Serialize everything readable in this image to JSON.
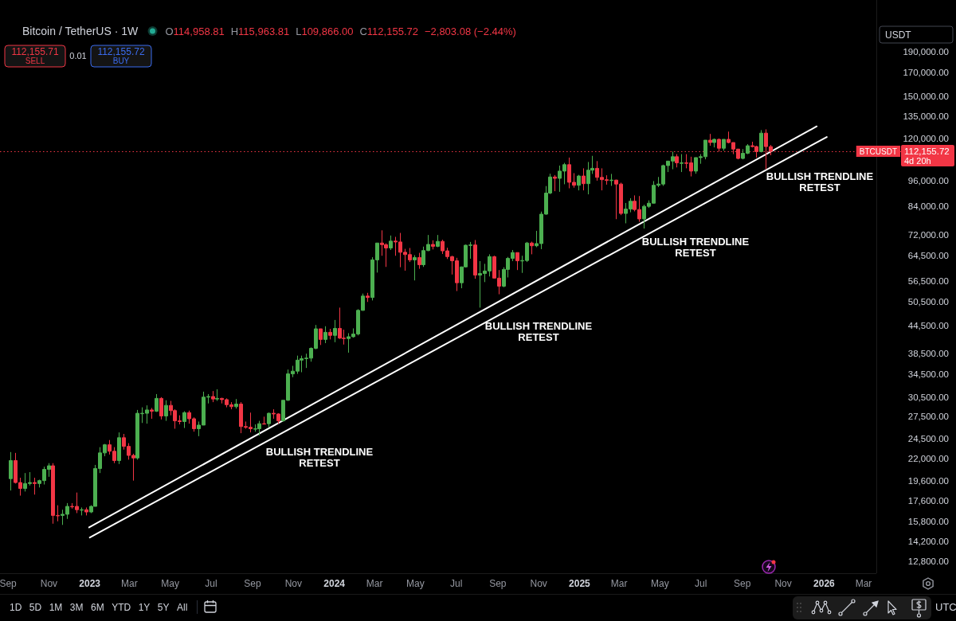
{
  "chart_data": {
    "type": "candlestick",
    "title": "Bitcoin / TetherUS · 1W",
    "log": true,
    "xlim": [
      "2022-08-20",
      "2026-03-20"
    ],
    "ylim": [
      12000,
      250000
    ],
    "xticks": [
      {
        "value": "2022-09-01",
        "label": "Sep"
      },
      {
        "value": "2022-11-01",
        "label": "Nov"
      },
      {
        "value": "2023-01-01",
        "label": "2023"
      },
      {
        "value": "2023-03-01",
        "label": "Mar"
      },
      {
        "value": "2023-05-01",
        "label": "May"
      },
      {
        "value": "2023-07-01",
        "label": "Jul"
      },
      {
        "value": "2023-09-01",
        "label": "Sep"
      },
      {
        "value": "2023-11-01",
        "label": "Nov"
      },
      {
        "value": "2024-01-01",
        "label": "2024"
      },
      {
        "value": "2024-03-01",
        "label": "Mar"
      },
      {
        "value": "2024-05-01",
        "label": "May"
      },
      {
        "value": "2024-07-01",
        "label": "Jul"
      },
      {
        "value": "2024-09-01",
        "label": "Sep"
      },
      {
        "value": "2024-11-01",
        "label": "Nov"
      },
      {
        "value": "2025-01-01",
        "label": "2025"
      },
      {
        "value": "2025-03-01",
        "label": "Mar"
      },
      {
        "value": "2025-05-01",
        "label": "May"
      },
      {
        "value": "2025-07-01",
        "label": "Jul"
      },
      {
        "value": "2025-09-01",
        "label": "Sep"
      },
      {
        "value": "2025-11-01",
        "label": "Nov"
      },
      {
        "value": "2026-01-01",
        "label": "2026"
      },
      {
        "value": "2026-03-01",
        "label": "Mar"
      }
    ],
    "yticks": [
      {
        "value": 12800,
        "label": "12,800.00"
      },
      {
        "value": 14200,
        "label": "14,200.00"
      },
      {
        "value": 15800,
        "label": "15,800.00"
      },
      {
        "value": 17600,
        "label": "17,600.00"
      },
      {
        "value": 19600,
        "label": "19,600.00"
      },
      {
        "value": 22000,
        "label": "22,000.00"
      },
      {
        "value": 24500,
        "label": "24,500.00"
      },
      {
        "value": 27500,
        "label": "27,500.00"
      },
      {
        "value": 30500,
        "label": "30,500.00"
      },
      {
        "value": 34500,
        "label": "34,500.00"
      },
      {
        "value": 38500,
        "label": "38,500.00"
      },
      {
        "value": 44500,
        "label": "44,500.00"
      },
      {
        "value": 50500,
        "label": "50,500.00"
      },
      {
        "value": 56500,
        "label": "56,500.00"
      },
      {
        "value": 64500,
        "label": "64,500.00"
      },
      {
        "value": 72000,
        "label": "72,000.00"
      },
      {
        "value": 84000,
        "label": "84,000.00"
      },
      {
        "value": 96000,
        "label": "96,000.00"
      },
      {
        "value": 120000,
        "label": "120,000.00"
      },
      {
        "value": 135000,
        "label": "135,000.00"
      },
      {
        "value": 150000,
        "label": "150,000.00"
      },
      {
        "value": 170000,
        "label": "170,000.00"
      },
      {
        "value": 190000,
        "label": "190,000.00"
      }
    ],
    "x": [
      "2022-09-05",
      "2022-09-12",
      "2022-09-19",
      "2022-09-26",
      "2022-10-03",
      "2022-10-10",
      "2022-10-17",
      "2022-10-24",
      "2022-10-31",
      "2022-11-07",
      "2022-11-14",
      "2022-11-21",
      "2022-11-28",
      "2022-12-05",
      "2022-12-12",
      "2022-12-19",
      "2022-12-26",
      "2023-01-02",
      "2023-01-09",
      "2023-01-16",
      "2023-01-23",
      "2023-01-30",
      "2023-02-06",
      "2023-02-13",
      "2023-02-20",
      "2023-02-27",
      "2023-03-06",
      "2023-03-13",
      "2023-03-20",
      "2023-03-27",
      "2023-04-03",
      "2023-04-10",
      "2023-04-17",
      "2023-04-24",
      "2023-05-01",
      "2023-05-08",
      "2023-05-15",
      "2023-05-22",
      "2023-05-29",
      "2023-06-05",
      "2023-06-12",
      "2023-06-19",
      "2023-06-26",
      "2023-07-03",
      "2023-07-10",
      "2023-07-17",
      "2023-07-24",
      "2023-07-31",
      "2023-08-07",
      "2023-08-14",
      "2023-08-21",
      "2023-08-28",
      "2023-09-04",
      "2023-09-11",
      "2023-09-18",
      "2023-09-25",
      "2023-10-02",
      "2023-10-09",
      "2023-10-16",
      "2023-10-23",
      "2023-10-30",
      "2023-11-06",
      "2023-11-13",
      "2023-11-20",
      "2023-11-27",
      "2023-12-04",
      "2023-12-11",
      "2023-12-18",
      "2023-12-25",
      "2024-01-01",
      "2024-01-08",
      "2024-01-15",
      "2024-01-22",
      "2024-01-29",
      "2024-02-05",
      "2024-02-12",
      "2024-02-19",
      "2024-02-26",
      "2024-03-04",
      "2024-03-11",
      "2024-03-18",
      "2024-03-25",
      "2024-04-01",
      "2024-04-08",
      "2024-04-15",
      "2024-04-22",
      "2024-04-29",
      "2024-05-06",
      "2024-05-13",
      "2024-05-20",
      "2024-05-27",
      "2024-06-03",
      "2024-06-10",
      "2024-06-17",
      "2024-06-24",
      "2024-07-01",
      "2024-07-08",
      "2024-07-15",
      "2024-07-22",
      "2024-07-29",
      "2024-08-05",
      "2024-08-12",
      "2024-08-19",
      "2024-08-26",
      "2024-09-02",
      "2024-09-09",
      "2024-09-16",
      "2024-09-23",
      "2024-09-30",
      "2024-10-07",
      "2024-10-14",
      "2024-10-21",
      "2024-10-28",
      "2024-11-04",
      "2024-11-11",
      "2024-11-18",
      "2024-11-25",
      "2024-12-02",
      "2024-12-09",
      "2024-12-16",
      "2024-12-23",
      "2024-12-30",
      "2025-01-06",
      "2025-01-13",
      "2025-01-20",
      "2025-01-27",
      "2025-02-03",
      "2025-02-10",
      "2025-02-17",
      "2025-02-24",
      "2025-03-03",
      "2025-03-10",
      "2025-03-17",
      "2025-03-24",
      "2025-03-31",
      "2025-04-07",
      "2025-04-14",
      "2025-04-21",
      "2025-04-28",
      "2025-05-05",
      "2025-05-12",
      "2025-05-19",
      "2025-05-26",
      "2025-06-02",
      "2025-06-09",
      "2025-06-16",
      "2025-06-23",
      "2025-06-30",
      "2025-07-07",
      "2025-07-14",
      "2025-07-21",
      "2025-07-28",
      "2025-08-04",
      "2025-08-11",
      "2025-08-18",
      "2025-08-25",
      "2025-09-01",
      "2025-09-08",
      "2025-09-15",
      "2025-09-22",
      "2025-09-29",
      "2025-10-06",
      "2025-10-13"
    ],
    "ohlc": [
      [
        19800,
        22800,
        18600,
        21800
      ],
      [
        21800,
        22700,
        19300,
        19400
      ],
      [
        19400,
        19900,
        18100,
        18800
      ],
      [
        18800,
        20400,
        18500,
        19300
      ],
      [
        19300,
        20500,
        19100,
        19400
      ],
      [
        19400,
        19900,
        18200,
        19300
      ],
      [
        19300,
        19700,
        18900,
        19600
      ],
      [
        19600,
        21100,
        19200,
        20800
      ],
      [
        20800,
        21500,
        20000,
        21200
      ],
      [
        21200,
        21500,
        15600,
        16300
      ],
      [
        16300,
        17200,
        15800,
        16300
      ],
      [
        16300,
        16800,
        15500,
        16400
      ],
      [
        16400,
        17400,
        16000,
        17100
      ],
      [
        17100,
        17400,
        16900,
        17100
      ],
      [
        17100,
        18400,
        16500,
        16800
      ],
      [
        16800,
        17000,
        16300,
        16800
      ],
      [
        16800,
        17000,
        16300,
        16600
      ],
      [
        16600,
        17200,
        16500,
        17100
      ],
      [
        17100,
        21300,
        17100,
        20900
      ],
      [
        20900,
        23400,
        20400,
        22700
      ],
      [
        22700,
        23800,
        22300,
        23700
      ],
      [
        23700,
        24300,
        22500,
        22900
      ],
      [
        22900,
        23400,
        21500,
        21800
      ],
      [
        21800,
        25300,
        21400,
        24600
      ],
      [
        24600,
        25100,
        23100,
        23500
      ],
      [
        23500,
        23900,
        21900,
        22400
      ],
      [
        22400,
        22600,
        19600,
        22100
      ],
      [
        22100,
        28500,
        21900,
        28000
      ],
      [
        28000,
        28900,
        26600,
        28000
      ],
      [
        28000,
        29200,
        26500,
        28500
      ],
      [
        28500,
        28800,
        27200,
        28300
      ],
      [
        28300,
        31000,
        28200,
        30300
      ],
      [
        30300,
        30500,
        27100,
        27600
      ],
      [
        27600,
        30000,
        26900,
        29200
      ],
      [
        29200,
        29900,
        27700,
        28400
      ],
      [
        28400,
        28600,
        25800,
        26900
      ],
      [
        26900,
        27700,
        26400,
        26800
      ],
      [
        26800,
        28300,
        25900,
        28100
      ],
      [
        28100,
        28400,
        26500,
        27200
      ],
      [
        27200,
        27400,
        25400,
        25800
      ],
      [
        25800,
        26800,
        24800,
        26300
      ],
      [
        26300,
        31400,
        26300,
        30500
      ],
      [
        30500,
        31000,
        29500,
        30600
      ],
      [
        30600,
        31500,
        29700,
        30200
      ],
      [
        30200,
        31800,
        29900,
        30300
      ],
      [
        30300,
        30400,
        29500,
        30100
      ],
      [
        30100,
        30300,
        28900,
        29300
      ],
      [
        29300,
        29700,
        28600,
        29000
      ],
      [
        29000,
        30200,
        28700,
        29400
      ],
      [
        29400,
        29700,
        25200,
        26100
      ],
      [
        26100,
        26800,
        25800,
        26000
      ],
      [
        26000,
        28100,
        25300,
        25800
      ],
      [
        25800,
        26400,
        25400,
        25800
      ],
      [
        25800,
        26900,
        24900,
        26500
      ],
      [
        26500,
        27500,
        26400,
        26500
      ],
      [
        26500,
        28100,
        26000,
        28000
      ],
      [
        28000,
        28600,
        27200,
        27900
      ],
      [
        27900,
        28000,
        26500,
        26900
      ],
      [
        26900,
        30000,
        26800,
        30000
      ],
      [
        30000,
        35300,
        29900,
        34500
      ],
      [
        34500,
        36000,
        33900,
        35000
      ],
      [
        35000,
        38000,
        34500,
        37100
      ],
      [
        37100,
        38000,
        34800,
        37400
      ],
      [
        37400,
        38400,
        35600,
        37500
      ],
      [
        37500,
        39700,
        36800,
        39500
      ],
      [
        39500,
        44700,
        39300,
        43800
      ],
      [
        43800,
        43800,
        40200,
        41400
      ],
      [
        41400,
        44400,
        40600,
        43000
      ],
      [
        43000,
        43800,
        41400,
        42300
      ],
      [
        42300,
        45900,
        40800,
        43900
      ],
      [
        43900,
        49000,
        41500,
        41700
      ],
      [
        41700,
        43600,
        40300,
        41600
      ],
      [
        41600,
        42800,
        38600,
        42000
      ],
      [
        42000,
        43900,
        41800,
        42600
      ],
      [
        42600,
        48600,
        42300,
        48300
      ],
      [
        48300,
        52800,
        48200,
        52100
      ],
      [
        52100,
        53000,
        50500,
        51700
      ],
      [
        51700,
        64000,
        50900,
        63100
      ],
      [
        63100,
        69000,
        59000,
        69000
      ],
      [
        69000,
        73800,
        64500,
        68400
      ],
      [
        68400,
        68900,
        60800,
        67200
      ],
      [
        67200,
        71800,
        66500,
        69700
      ],
      [
        69700,
        71300,
        64500,
        69400
      ],
      [
        69400,
        72800,
        60700,
        65700
      ],
      [
        65700,
        66900,
        59600,
        64900
      ],
      [
        64900,
        67200,
        62400,
        63100
      ],
      [
        63100,
        64700,
        56600,
        63900
      ],
      [
        63900,
        65500,
        60200,
        61500
      ],
      [
        61500,
        67700,
        60800,
        66300
      ],
      [
        66300,
        72000,
        66100,
        68500
      ],
      [
        68500,
        70000,
        66700,
        67800
      ],
      [
        67800,
        72000,
        67500,
        69600
      ],
      [
        69600,
        70200,
        65100,
        66200
      ],
      [
        66200,
        67300,
        63400,
        64200
      ],
      [
        64200,
        64500,
        58400,
        62800
      ],
      [
        62800,
        63800,
        53500,
        55900
      ],
      [
        55900,
        60900,
        54300,
        60800
      ],
      [
        60800,
        68400,
        60600,
        68200
      ],
      [
        68200,
        69400,
        63500,
        68300
      ],
      [
        68300,
        70100,
        57100,
        58200
      ],
      [
        58200,
        62700,
        49000,
        58700
      ],
      [
        58700,
        61800,
        56100,
        59500
      ],
      [
        59500,
        65000,
        57800,
        64200
      ],
      [
        64200,
        64500,
        57200,
        57300
      ],
      [
        57300,
        59800,
        52600,
        54900
      ],
      [
        54900,
        60700,
        54600,
        60000
      ],
      [
        60000,
        64100,
        57500,
        63600
      ],
      [
        63600,
        66500,
        62700,
        65600
      ],
      [
        65600,
        65600,
        59800,
        62800
      ],
      [
        62800,
        64500,
        58900,
        62900
      ],
      [
        62900,
        69400,
        62400,
        69000
      ],
      [
        69000,
        69500,
        65000,
        68000
      ],
      [
        68000,
        73600,
        67500,
        68800
      ],
      [
        68800,
        81500,
        66800,
        80400
      ],
      [
        80400,
        93300,
        80200,
        89900
      ],
      [
        89900,
        99600,
        89400,
        97900
      ],
      [
        97900,
        98900,
        90800,
        97200
      ],
      [
        97200,
        104000,
        90500,
        101000
      ],
      [
        101000,
        105500,
        94200,
        104500
      ],
      [
        104500,
        108500,
        92200,
        95200
      ],
      [
        95200,
        99900,
        92500,
        93700
      ],
      [
        93700,
        99000,
        91200,
        98400
      ],
      [
        98400,
        102500,
        91200,
        94500
      ],
      [
        94500,
        106000,
        89300,
        101500
      ],
      [
        101500,
        109500,
        99500,
        102500
      ],
      [
        102500,
        106500,
        96000,
        97700
      ],
      [
        97700,
        102500,
        91200,
        96500
      ],
      [
        96500,
        98800,
        94000,
        96100
      ],
      [
        96100,
        99500,
        93400,
        96300
      ],
      [
        96300,
        96500,
        78300,
        94300
      ],
      [
        94300,
        95000,
        80000,
        80700
      ],
      [
        80700,
        85300,
        76600,
        82600
      ],
      [
        82600,
        87500,
        81200,
        86100
      ],
      [
        86100,
        88800,
        81600,
        82400
      ],
      [
        82400,
        88500,
        77200,
        78400
      ],
      [
        78400,
        84500,
        74500,
        83800
      ],
      [
        83800,
        86500,
        83100,
        85200
      ],
      [
        85200,
        95800,
        85100,
        93700
      ],
      [
        93700,
        97900,
        92800,
        94300
      ],
      [
        94300,
        104500,
        93400,
        104000
      ],
      [
        104000,
        106500,
        100500,
        106500
      ],
      [
        106500,
        112000,
        102000,
        109000
      ],
      [
        109000,
        110500,
        103000,
        105500
      ],
      [
        105500,
        110500,
        100500,
        105500
      ],
      [
        105500,
        110500,
        102500,
        105500
      ],
      [
        105500,
        109000,
        98200,
        101000
      ],
      [
        101000,
        108500,
        99600,
        108500
      ],
      [
        108500,
        110500,
        105000,
        109000
      ],
      [
        109000,
        119000,
        107500,
        119000
      ],
      [
        119000,
        123000,
        115500,
        117500
      ],
      [
        117500,
        120000,
        114500,
        119500
      ],
      [
        119500,
        120000,
        112000,
        114000
      ],
      [
        114000,
        119500,
        112500,
        119500
      ],
      [
        119500,
        124500,
        117000,
        117500
      ],
      [
        117500,
        117500,
        110500,
        113500
      ],
      [
        113500,
        113500,
        107500,
        108000
      ],
      [
        108000,
        113500,
        107500,
        111000
      ],
      [
        111000,
        116500,
        110500,
        115500
      ],
      [
        115500,
        118000,
        114500,
        115000
      ],
      [
        115000,
        115500,
        108500,
        112000
      ],
      [
        112000,
        125500,
        111500,
        123500
      ],
      [
        123500,
        126000,
        102000,
        115000
      ],
      [
        114958.81,
        115963.81,
        109866,
        112155.72
      ]
    ],
    "colors": [
      "#4caf50",
      "#f23645",
      "#f23645",
      "#4caf50",
      "#4caf50",
      "#f23645",
      "#4caf50",
      "#4caf50",
      "#4caf50",
      "#f23645",
      "#f23645",
      "#4caf50",
      "#4caf50",
      "#f23645",
      "#f23645",
      "#4caf50",
      "#f23645",
      "#4caf50",
      "#4caf50",
      "#4caf50",
      "#4caf50",
      "#f23645",
      "#f23645",
      "#4caf50",
      "#f23645",
      "#f23645",
      "#f23645",
      "#4caf50",
      "#4caf50",
      "#4caf50",
      "#f23645",
      "#4caf50",
      "#f23645",
      "#4caf50",
      "#f23645",
      "#f23645",
      "#f23645",
      "#4caf50",
      "#f23645",
      "#f23645",
      "#4caf50",
      "#4caf50",
      "#4caf50",
      "#f23645",
      "#4caf50",
      "#f23645",
      "#f23645",
      "#f23645",
      "#4caf50",
      "#f23645",
      "#f23645",
      "#f23645",
      "#4caf50",
      "#4caf50",
      "#f23645",
      "#4caf50",
      "#f23645",
      "#f23645",
      "#4caf50",
      "#4caf50",
      "#4caf50",
      "#4caf50",
      "#4caf50",
      "#4caf50",
      "#4caf50",
      "#4caf50",
      "#f23645",
      "#4caf50",
      "#f23645",
      "#4caf50",
      "#f23645",
      "#f23645",
      "#4caf50",
      "#4caf50",
      "#4caf50",
      "#4caf50",
      "#f23645",
      "#4caf50",
      "#4caf50",
      "#f23645",
      "#f23645",
      "#4caf50",
      "#f23645",
      "#f23645",
      "#f23645",
      "#f23645",
      "#4caf50",
      "#f23645",
      "#4caf50",
      "#4caf50",
      "#f23645",
      "#4caf50",
      "#f23645",
      "#f23645",
      "#f23645",
      "#f23645",
      "#4caf50",
      "#4caf50",
      "#4caf50",
      "#f23645",
      "#4caf50",
      "#4caf50",
      "#4caf50",
      "#f23645",
      "#f23645",
      "#4caf50",
      "#4caf50",
      "#4caf50",
      "#f23645",
      "#4caf50",
      "#4caf50",
      "#f23645",
      "#4caf50",
      "#4caf50",
      "#4caf50",
      "#4caf50",
      "#f23645",
      "#4caf50",
      "#4caf50",
      "#f23645",
      "#f23645",
      "#4caf50",
      "#f23645",
      "#4caf50",
      "#4caf50",
      "#f23645",
      "#f23645",
      "#f23645",
      "#4caf50",
      "#f23645",
      "#f23645",
      "#4caf50",
      "#4caf50",
      "#f23645",
      "#f23645",
      "#4caf50",
      "#4caf50",
      "#4caf50",
      "#4caf50",
      "#4caf50",
      "#4caf50",
      "#4caf50",
      "#f23645",
      "#4caf50",
      "#f23645",
      "#f23645",
      "#4caf50",
      "#4caf50",
      "#4caf50",
      "#f23645",
      "#4caf50",
      "#f23645",
      "#4caf50",
      "#f23645",
      "#f23645",
      "#f23645",
      "#4caf50",
      "#4caf50",
      "#f23645",
      "#f23645",
      "#4caf50",
      "#f23645",
      "#f23645"
    ],
    "series": [
      {
        "type": "line",
        "x": [
          "2022-12-31",
          "2025-12-21"
        ],
        "values": [
          15300,
          128000
        ],
        "color": "#ffffff"
      },
      {
        "type": "line",
        "x": [
          "2023-01-01",
          "2026-01-05"
        ],
        "values": [
          14500,
          121000
        ],
        "color": "#ffffff"
      }
    ],
    "ref_lines": [
      {
        "axis": "y",
        "value": 112155.72,
        "label": "112,155.72",
        "color": "#f23645",
        "line_style": "dotted"
      }
    ],
    "annotations": [
      "O114,958.81",
      "H115,963.81",
      "L109,866.00",
      "C112,155.72",
      "−2,803.08 (−2.44%)",
      "112,155.71",
      "SELL",
      "0.01",
      "112,155.72",
      "BUY",
      "USDT",
      "BTCUSDT",
      "4d 20h",
      "BULLISH TRENDLINE\nRETEST",
      "BULLISH TRENDLINE\nRETEST",
      "BULLISH TRENDLINE\nRETEST",
      "BULLISH TRENDLINE\nRETEST",
      "1D",
      "5D",
      "1M",
      "3M",
      "6M",
      "YTD",
      "1Y",
      "5Y",
      "All",
      "UTC"
    ]
  }
}
